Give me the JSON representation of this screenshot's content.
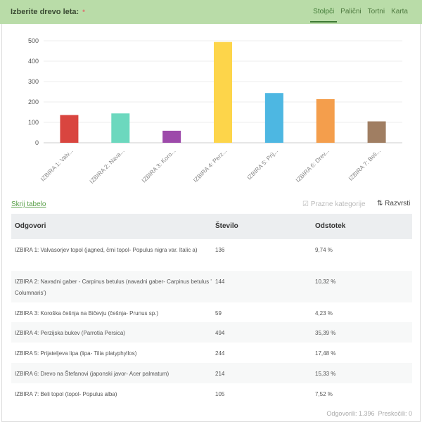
{
  "header": {
    "title": "Izberite drevo leta:",
    "required": "*",
    "tabs": [
      "Stolpči",
      "Palični",
      "Tortni",
      "Karta"
    ],
    "active_tab": 0
  },
  "chart_data": {
    "type": "bar",
    "categories": [
      "IZBIRA 1: Valv...",
      "IZBIRA 2: Nava...",
      "IZBIRA 3: Koro...",
      "IZBIRA 4: Perz...",
      "IZBIRA 5: Prij...",
      "IZBIRA 6: Drev...",
      "IZBIRA 7: Beli..."
    ],
    "values": [
      136,
      144,
      59,
      494,
      244,
      214,
      105
    ],
    "colors": [
      "#d9453f",
      "#6cd8be",
      "#9d4aaa",
      "#fdd54a",
      "#4db7e2",
      "#f49e4c",
      "#a07e62"
    ],
    "ylim": [
      0,
      500
    ],
    "yticks": [
      "0",
      "100",
      "200",
      "300",
      "400",
      "500"
    ],
    "grid": true
  },
  "controls": {
    "hide_table": "Skrij tabelo",
    "empty_categories": "Prazne kategorije",
    "sort": "Razvrsti",
    "sort_icon": "⇅"
  },
  "table": {
    "headers": [
      "Odgovori",
      "Število",
      "Odstotek"
    ],
    "rows": [
      [
        "IZBIRA 1: Valvasorjev topol (jagned, črni topol- Populus nigra var. Italic a)",
        "136",
        "9,74 %"
      ],
      [
        "IZBIRA 2: Navadni gaber - Carpinus betulus (navadni gaber- Carpinus betulus ' Columnaris')",
        "144",
        "10,32 %"
      ],
      [
        "IZBIRA 3: Koroška češnja na Bičevju (češnja- Prunus sp.)",
        "59",
        "4,23 %"
      ],
      [
        "IZBIRA 4: Perzijska bukev (Parrotia Persica)",
        "494",
        "35,39 %"
      ],
      [
        "IZBIRA 5: Prijateljeva lipa (lipa- Tilia platyphyllos)",
        "244",
        "17,48 %"
      ],
      [
        "IZBIRA 6: Drevo na Štefanovi (japonski javor- Acer palmatum)",
        "214",
        "15,33 %"
      ],
      [
        "IZBIRA 7: Beli topol (topol- Populus alba)",
        "105",
        "7,52 %"
      ]
    ]
  },
  "footer": {
    "answered": "Odgovorili: 1.396",
    "skipped": "Preskočili: 0"
  }
}
